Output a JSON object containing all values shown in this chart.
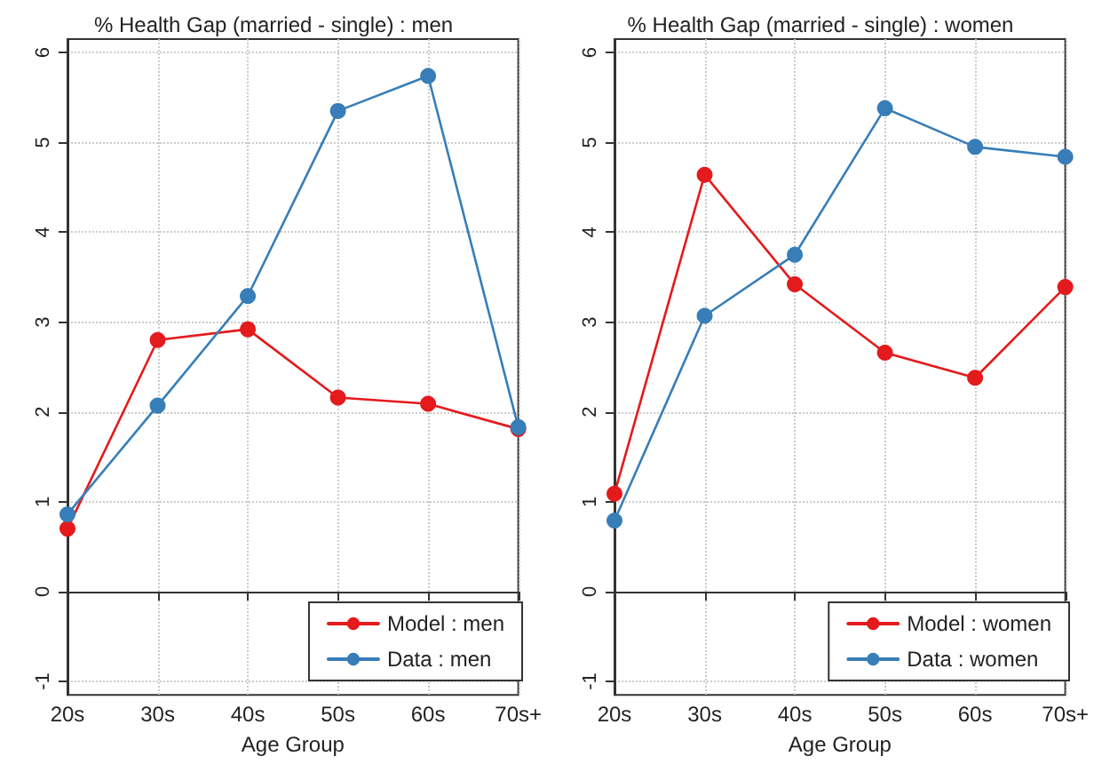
{
  "chart_data": [
    {
      "type": "line",
      "title": "% Health Gap (married - single) : men",
      "xlabel": "Age Group",
      "categories": [
        "20s",
        "30s",
        "40s",
        "50s",
        "60s",
        "70s+"
      ],
      "series": [
        {
          "name": "Model : men",
          "color": "#e41a1c",
          "values": [
            0.7,
            2.8,
            2.92,
            2.16,
            2.09,
            1.81
          ]
        },
        {
          "name": "Data : men",
          "color": "#377eb8",
          "values": [
            0.86,
            2.07,
            3.29,
            5.35,
            5.74,
            1.83
          ]
        }
      ],
      "ylim": [
        -1.15,
        6.15
      ],
      "yticks": [
        -1,
        0,
        1,
        2,
        3,
        4,
        5,
        6
      ],
      "grid": true,
      "legend": "bottom right",
      "marker": "circle"
    },
    {
      "type": "line",
      "title": "% Health Gap (married - single) : women",
      "xlabel": "Age Group",
      "categories": [
        "20s",
        "30s",
        "40s",
        "50s",
        "60s",
        "70s+"
      ],
      "series": [
        {
          "name": "Model : women",
          "color": "#e41a1c",
          "values": [
            1.09,
            4.64,
            3.42,
            2.66,
            2.38,
            3.39
          ]
        },
        {
          "name": "Data : women",
          "color": "#377eb8",
          "values": [
            0.79,
            3.07,
            3.75,
            5.38,
            4.95,
            4.84
          ]
        }
      ],
      "ylim": [
        -1.15,
        6.15
      ],
      "yticks": [
        -1,
        0,
        1,
        2,
        3,
        4,
        5,
        6
      ],
      "grid": true,
      "legend": "bottom right",
      "marker": "circle"
    }
  ]
}
